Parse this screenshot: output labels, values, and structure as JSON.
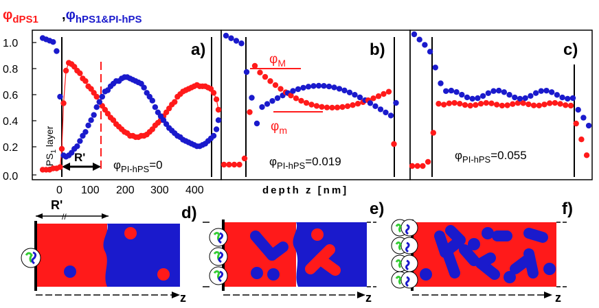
{
  "figure": {
    "ylabel_left": "φ",
    "ylabel_left_sub": "dPS1",
    "ylabel_sep": ",",
    "ylabel_right": "φ",
    "ylabel_right_sub": "hPS1&PI-hPS",
    "xlabel": "depth z [nm]",
    "inner_ylabel": "hPS",
    "inner_ylabel_sub": "1",
    "inner_ylabel_tail": " layer",
    "colors": {
      "dPS": "#ff1a1a",
      "hPS": "#1a1acc",
      "green": "#33cc33",
      "axis": "#000000"
    }
  },
  "panels": [
    {
      "label": "a)",
      "phi_text": "φ",
      "phi_sub": "PI-hPS",
      "phi_value": "=0",
      "marker": "R'"
    },
    {
      "label": "b)",
      "phi_text": "φ",
      "phi_sub": "PI-hPS",
      "phi_value": "=0.019",
      "phiM": "φ",
      "phiM_sub": "M",
      "phim": "φ",
      "phim_sub": "m"
    },
    {
      "label": "c)",
      "phi_text": "φ",
      "phi_sub": "PI-hPS",
      "phi_value": "=0.055"
    }
  ],
  "schematics": [
    {
      "label": "d)",
      "marker": "R'",
      "marker_tick": "//",
      "axis": "z"
    },
    {
      "label": "e)",
      "axis": "z"
    },
    {
      "label": "f)",
      "axis": "z"
    }
  ],
  "chart_data": [
    {
      "type": "scatter",
      "title": "a)",
      "yticks": [
        "0.0",
        "0.2",
        "0.4",
        "0.6",
        "0.8",
        "1.0"
      ],
      "xticks": [
        "0",
        "100",
        "200",
        "300",
        "400"
      ],
      "ylim": [
        0,
        1.05
      ],
      "xlim": [
        -60,
        480
      ],
      "series": [
        {
          "values_x": [
            -55,
            -45,
            -35,
            -25,
            -15,
            -5,
            0,
            5,
            12,
            20,
            28,
            36,
            44,
            52,
            60,
            68,
            76,
            84,
            92,
            100,
            108,
            116,
            124,
            132,
            140,
            148,
            156,
            164,
            172,
            180,
            188,
            196,
            204,
            212,
            220,
            228,
            236,
            244,
            252,
            260,
            268,
            276,
            284,
            292,
            300,
            308,
            316,
            324,
            332,
            340,
            348,
            356,
            364,
            372,
            380,
            388,
            396,
            404,
            412,
            420,
            428,
            436,
            444,
            452
          ],
          "values_y": [
            0.04,
            0.04,
            0.04,
            0.05,
            0.05,
            0.06,
            0.2,
            0.55,
            0.8,
            0.86,
            0.85,
            0.83,
            0.8,
            0.78,
            0.74,
            0.72,
            0.68,
            0.66,
            0.63,
            0.6,
            0.56,
            0.53,
            0.5,
            0.47,
            0.44,
            0.42,
            0.39,
            0.37,
            0.35,
            0.33,
            0.32,
            0.3,
            0.3,
            0.29,
            0.29,
            0.3,
            0.3,
            0.31,
            0.33,
            0.35,
            0.38,
            0.4,
            0.42,
            0.45,
            0.48,
            0.51,
            0.54,
            0.56,
            0.6,
            0.62,
            0.64,
            0.65,
            0.66,
            0.67,
            0.68,
            0.69,
            0.68,
            0.68,
            0.68,
            0.67,
            0.66,
            0.63,
            0.58,
            0.5
          ]
        },
        {
          "values_x": [
            -55,
            -45,
            -35,
            -25,
            -15,
            -5,
            5,
            12,
            20,
            28,
            36,
            44,
            52,
            60,
            68,
            76,
            84,
            92,
            100,
            108,
            116,
            124,
            132,
            140,
            148,
            156,
            164,
            172,
            180,
            188,
            196,
            204,
            212,
            220,
            228,
            236,
            244,
            252,
            260,
            268,
            276,
            284,
            292,
            300,
            308,
            316,
            324,
            332,
            340,
            348,
            356,
            364,
            372,
            380,
            388,
            396,
            404,
            412,
            420,
            428,
            436,
            444,
            452
          ],
          "values_y": [
            1.05,
            1.04,
            1.03,
            1.02,
            0.95,
            0.6,
            0.15,
            0.14,
            0.15,
            0.17,
            0.2,
            0.22,
            0.26,
            0.3,
            0.33,
            0.38,
            0.42,
            0.46,
            0.52,
            0.56,
            0.6,
            0.64,
            0.65,
            0.68,
            0.7,
            0.72,
            0.72,
            0.74,
            0.75,
            0.75,
            0.74,
            0.73,
            0.72,
            0.71,
            0.7,
            0.67,
            0.63,
            0.6,
            0.57,
            0.52,
            0.48,
            0.45,
            0.42,
            0.39,
            0.36,
            0.34,
            0.32,
            0.3,
            0.29,
            0.27,
            0.26,
            0.25,
            0.24,
            0.23,
            0.22,
            0.22,
            0.23,
            0.24,
            0.26,
            0.28,
            0.3,
            0.35,
            0.42
          ]
        }
      ]
    },
    {
      "type": "scatter",
      "title": "b)"
    },
    {
      "type": "scatter",
      "title": "c)"
    }
  ]
}
